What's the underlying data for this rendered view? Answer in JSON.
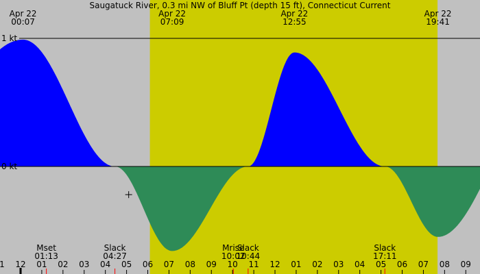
{
  "title": "Saugatuck River, 0.3 mi NW of Bluff Pt (depth 15 ft), Connecticut Current",
  "colors": {
    "night": "#c0c0c0",
    "day": "#cccc00",
    "flood": "#0000ff",
    "ebb": "#2e8b57",
    "axis": "#000000",
    "tick_event": "#ff0000"
  },
  "chart_data": {
    "type": "area",
    "xlabel": "",
    "ylabel": "",
    "x_range_hours": [
      -0.97,
      21.67
    ],
    "ylim_kt": [
      -1.0,
      1.5
    ],
    "grid": false,
    "y_ticks": [
      {
        "value": 1,
        "label": "1 kt"
      },
      {
        "value": 0,
        "label": "0 kt"
      }
    ],
    "daylight": {
      "start": "06:06",
      "end": "19:40"
    },
    "top_events": [
      {
        "date": "Apr 22",
        "time": "00:07",
        "hour": 0.117
      },
      {
        "date": "Apr 22",
        "time": "07:09",
        "hour": 7.15
      },
      {
        "date": "Apr 22",
        "time": "12:55",
        "hour": 12.917
      },
      {
        "date": "Apr 22",
        "time": "19:41",
        "hour": 19.683
      }
    ],
    "current_points": [
      {
        "time": "00:07",
        "hour": 0.117,
        "kt": 0.99
      },
      {
        "time": "04:27",
        "hour": 4.45,
        "kt": 0.0
      },
      {
        "time": "07:09",
        "hour": 7.15,
        "kt": -0.66
      },
      {
        "time": "10:44",
        "hour": 10.733,
        "kt": 0.0
      },
      {
        "time": "12:55",
        "hour": 12.917,
        "kt": 0.89
      },
      {
        "time": "17:11",
        "hour": 17.183,
        "kt": 0.0
      },
      {
        "time": "19:41",
        "hour": 19.683,
        "kt": -0.55
      }
    ],
    "x_tick_labels": [
      {
        "label": "11",
        "hour": -1
      },
      {
        "label": "12",
        "hour": 0
      },
      {
        "label": "01",
        "hour": 1
      },
      {
        "label": "02",
        "hour": 2
      },
      {
        "label": "03",
        "hour": 3
      },
      {
        "label": "04",
        "hour": 4
      },
      {
        "label": "05",
        "hour": 5
      },
      {
        "label": "06",
        "hour": 6
      },
      {
        "label": "07",
        "hour": 7
      },
      {
        "label": "08",
        "hour": 8
      },
      {
        "label": "09",
        "hour": 9
      },
      {
        "label": "10",
        "hour": 10
      },
      {
        "label": "11",
        "hour": 11
      },
      {
        "label": "12",
        "hour": 12
      },
      {
        "label": "01",
        "hour": 13
      },
      {
        "label": "02",
        "hour": 14
      },
      {
        "label": "03",
        "hour": 15
      },
      {
        "label": "04",
        "hour": 16
      },
      {
        "label": "05",
        "hour": 17
      },
      {
        "label": "06",
        "hour": 18
      },
      {
        "label": "07",
        "hour": 19
      },
      {
        "label": "08",
        "hour": 20
      },
      {
        "label": "09",
        "hour": 21
      }
    ],
    "bottom_events": [
      {
        "label": "Mset",
        "time": "01:13",
        "hour": 1.217
      },
      {
        "label": "Slack",
        "time": "04:27",
        "hour": 4.45
      },
      {
        "label": "Mrise",
        "time": "10:02",
        "hour": 10.033
      },
      {
        "label": "Slack",
        "time": "10:44",
        "hour": 10.733
      },
      {
        "label": "Slack",
        "time": "17:11",
        "hour": 17.183
      }
    ],
    "marker_hour": 5.1,
    "marker_kt": -0.22
  }
}
